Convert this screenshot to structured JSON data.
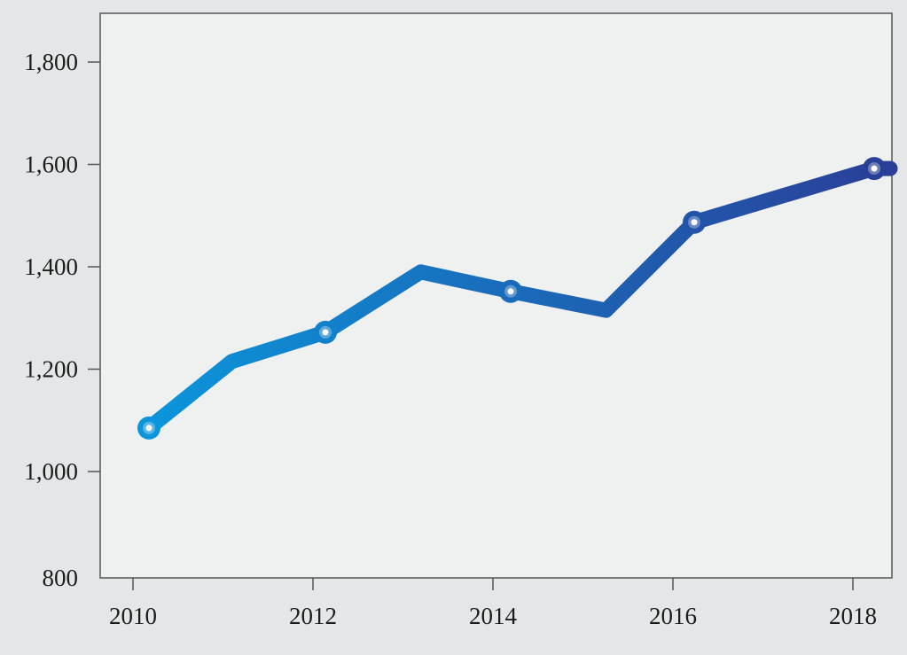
{
  "chart_data": {
    "type": "line",
    "title": "",
    "xlabel": "",
    "ylabel": "",
    "x": [
      2010,
      2011,
      2012,
      2013,
      2014,
      2015,
      2016,
      2018
    ],
    "series": [
      {
        "values": [
          1085,
          1215,
          1272,
          1390,
          1352,
          1315,
          1487,
          1592
        ],
        "markers": [
          true,
          false,
          true,
          false,
          true,
          false,
          true,
          true
        ]
      }
    ],
    "xlim": [
      2009.6,
      2018.4
    ],
    "ylim": [
      800,
      1900
    ],
    "xticks": [
      2010,
      2012,
      2014,
      2016,
      2018
    ],
    "xtick_labels": [
      "2010",
      "2012",
      "2014",
      "2016",
      "2018"
    ],
    "yticks": [
      800,
      1000,
      1200,
      1400,
      1600,
      1800
    ],
    "ytick_labels": [
      "800",
      "1,000",
      "1,200",
      "1,400",
      "1,600",
      "1,800"
    ],
    "grid": false,
    "colors": {
      "page_background": "#e4e6e7",
      "plot_background": "#eff0f0",
      "axis": "#555555",
      "line_start": "#0a97dc",
      "line_end": "#2a3f98",
      "marker_center": "#ffffff"
    }
  }
}
